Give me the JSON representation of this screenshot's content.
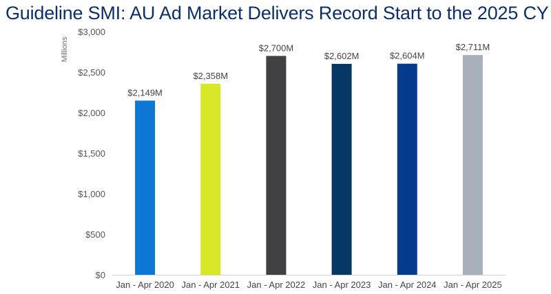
{
  "title": "Guideline SMI: AU Ad Market Delivers Record Start to the 2025 CY",
  "chart_data": {
    "type": "bar",
    "title": "Guideline SMI: AU Ad Market Delivers Record Start to the 2025 CY",
    "ylabel": "Millions",
    "xlabel": "",
    "ylim": [
      0,
      3000
    ],
    "yticks": [
      0,
      500,
      1000,
      1500,
      2000,
      2500,
      3000
    ],
    "ytick_labels": [
      "$0",
      "$500",
      "$1,000",
      "$1,500",
      "$2,000",
      "$2,500",
      "$3,000"
    ],
    "grid": false,
    "categories": [
      "Jan - Apr 2020",
      "Jan - Apr 2021",
      "Jan - Apr 2022",
      "Jan - Apr 2023",
      "Jan - Apr 2024",
      "Jan - Apr 2025"
    ],
    "values": [
      2149,
      2358,
      2700,
      2602,
      2604,
      2711
    ],
    "value_labels": [
      "$2,149M",
      "$2,358M",
      "$2,700M",
      "$2,602M",
      "$2,604M",
      "$2,711M"
    ],
    "colors": [
      "#0d77d6",
      "#d8e826",
      "#414042",
      "#063866",
      "#053b8c",
      "#a8b0bc"
    ]
  }
}
